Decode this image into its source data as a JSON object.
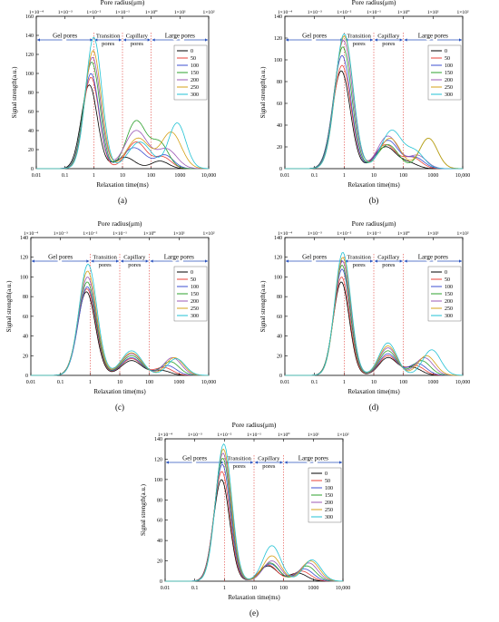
{
  "figure": {
    "top_axis_label": "Pore radius(μm)",
    "x_label": "Relaxation time(ms)",
    "y_label": "Signal strength(a.u.)",
    "top_ticks": [
      "1×10⁻⁴",
      "1×10⁻³",
      "1×10⁻²",
      "1×10⁻¹",
      "1×10⁰",
      "1×10¹",
      "1×10²"
    ],
    "x_ticks": [
      "0.01",
      "0.1",
      "1",
      "10",
      "100",
      "1000",
      "10,000"
    ],
    "regions": [
      {
        "label": [
          "Gel pores"
        ],
        "from": 0.01,
        "to": 1
      },
      {
        "label": [
          "Transition",
          "pores"
        ],
        "from": 1,
        "to": 10
      },
      {
        "label": [
          "Capillary",
          "pores"
        ],
        "from": 10,
        "to": 100
      },
      {
        "label": [
          "Large pores"
        ],
        "from": 100,
        "to": 10000
      }
    ],
    "boundary_lines": [
      1,
      10,
      100
    ],
    "legend_labels": [
      "0",
      "50",
      "100",
      "150",
      "200",
      "250",
      "300"
    ],
    "series_colors": [
      "#000000",
      "#e8423a",
      "#3e4fd0",
      "#2ca02c",
      "#9b59b6",
      "#d4a017",
      "#22c2d4"
    ]
  },
  "chart_data": [
    {
      "panel_label": "(a)",
      "type": "line",
      "x_scale": "log",
      "xlim": [
        0.01,
        10000
      ],
      "ylim": [
        0,
        160
      ],
      "y_ticks": [
        0,
        20,
        40,
        60,
        80,
        100,
        120,
        140,
        160
      ],
      "series": [
        {
          "name": "0",
          "peaks": [
            [
              0.7,
              88,
              0.28
            ],
            [
              12,
              12,
              0.35
            ],
            [
              200,
              8,
              0.3
            ]
          ]
        },
        {
          "name": "50",
          "peaks": [
            [
              0.8,
              96,
              0.28
            ],
            [
              30,
              28,
              0.35
            ],
            [
              250,
              12,
              0.3
            ]
          ]
        },
        {
          "name": "100",
          "peaks": [
            [
              0.8,
              100,
              0.28
            ],
            [
              25,
              22,
              0.4
            ],
            [
              300,
              14,
              0.3
            ]
          ]
        },
        {
          "name": "150",
          "peaks": [
            [
              0.85,
              112,
              0.28
            ],
            [
              30,
              50,
              0.35
            ],
            [
              200,
              26,
              0.3
            ]
          ]
        },
        {
          "name": "200",
          "peaks": [
            [
              0.9,
              117,
              0.28
            ],
            [
              30,
              40,
              0.4
            ],
            [
              350,
              20,
              0.35
            ]
          ]
        },
        {
          "name": "250",
          "peaks": [
            [
              0.95,
              124,
              0.28
            ],
            [
              35,
              32,
              0.4
            ],
            [
              500,
              38,
              0.35
            ]
          ]
        },
        {
          "name": "300",
          "peaks": [
            [
              1.0,
              138,
              0.28
            ],
            [
              40,
              28,
              0.4
            ],
            [
              800,
              48,
              0.3
            ]
          ]
        }
      ]
    },
    {
      "panel_label": "(b)",
      "type": "line",
      "x_scale": "log",
      "xlim": [
        0.01,
        10000
      ],
      "ylim": [
        0,
        140
      ],
      "y_ticks": [
        0,
        20,
        40,
        60,
        80,
        100,
        120,
        140
      ],
      "series": [
        {
          "name": "0",
          "peaks": [
            [
              0.8,
              90,
              0.3
            ],
            [
              25,
              20,
              0.35
            ],
            [
              150,
              5,
              0.3
            ]
          ]
        },
        {
          "name": "50",
          "peaks": [
            [
              0.85,
              95,
              0.3
            ],
            [
              25,
              22,
              0.35
            ],
            [
              200,
              10,
              0.3
            ]
          ]
        },
        {
          "name": "100",
          "peaks": [
            [
              0.85,
              104,
              0.3
            ],
            [
              30,
              26,
              0.35
            ],
            [
              250,
              10,
              0.3
            ]
          ]
        },
        {
          "name": "150",
          "peaks": [
            [
              0.9,
              112,
              0.3
            ],
            [
              30,
              22,
              0.35
            ],
            [
              700,
              28,
              0.3
            ]
          ]
        },
        {
          "name": "200",
          "peaks": [
            [
              0.95,
              118,
              0.3
            ],
            [
              30,
              30,
              0.35
            ],
            [
              300,
              12,
              0.3
            ]
          ]
        },
        {
          "name": "250",
          "peaks": [
            [
              1.0,
              122,
              0.3
            ],
            [
              35,
              28,
              0.35
            ],
            [
              700,
              28,
              0.3
            ]
          ]
        },
        {
          "name": "300",
          "peaks": [
            [
              1.0,
              124,
              0.3
            ],
            [
              40,
              35,
              0.35
            ],
            [
              250,
              15,
              0.3
            ]
          ]
        }
      ]
    },
    {
      "panel_label": "(c)",
      "type": "line",
      "x_scale": "log",
      "xlim": [
        0.01,
        10000
      ],
      "ylim": [
        0,
        140
      ],
      "y_ticks": [
        0,
        20,
        40,
        60,
        80,
        100,
        120,
        140
      ],
      "series": [
        {
          "name": "0",
          "peaks": [
            [
              0.75,
              85,
              0.3
            ],
            [
              25,
              15,
              0.35
            ],
            [
              250,
              5,
              0.3
            ]
          ]
        },
        {
          "name": "50",
          "peaks": [
            [
              0.78,
              88,
              0.3
            ],
            [
              25,
              17,
              0.35
            ],
            [
              300,
              8,
              0.3
            ]
          ]
        },
        {
          "name": "100",
          "peaks": [
            [
              0.8,
              90,
              0.3
            ],
            [
              25,
              18,
              0.35
            ],
            [
              400,
              10,
              0.3
            ]
          ]
        },
        {
          "name": "150",
          "peaks": [
            [
              0.8,
              95,
              0.3
            ],
            [
              25,
              20,
              0.35
            ],
            [
              500,
              14,
              0.3
            ]
          ]
        },
        {
          "name": "200",
          "peaks": [
            [
              0.82,
              100,
              0.3
            ],
            [
              25,
              22,
              0.35
            ],
            [
              600,
              18,
              0.3
            ]
          ]
        },
        {
          "name": "250",
          "peaks": [
            [
              0.82,
              106,
              0.3
            ],
            [
              25,
              23,
              0.35
            ],
            [
              700,
              18,
              0.3
            ]
          ]
        },
        {
          "name": "300",
          "peaks": [
            [
              0.85,
              113,
              0.3
            ],
            [
              25,
              25,
              0.35
            ],
            [
              800,
              17,
              0.3
            ]
          ]
        }
      ]
    },
    {
      "panel_label": "(d)",
      "type": "line",
      "x_scale": "log",
      "xlim": [
        0.01,
        10000
      ],
      "ylim": [
        0,
        140
      ],
      "y_ticks": [
        0,
        20,
        40,
        60,
        80,
        100,
        120,
        140
      ],
      "series": [
        {
          "name": "0",
          "peaks": [
            [
              0.8,
              95,
              0.27
            ],
            [
              30,
              18,
              0.3
            ],
            [
              200,
              8,
              0.3
            ]
          ]
        },
        {
          "name": "50",
          "peaks": [
            [
              0.82,
              100,
              0.27
            ],
            [
              30,
              20,
              0.3
            ],
            [
              250,
              10,
              0.3
            ]
          ]
        },
        {
          "name": "100",
          "peaks": [
            [
              0.85,
              108,
              0.27
            ],
            [
              30,
              22,
              0.3
            ],
            [
              300,
              12,
              0.3
            ]
          ]
        },
        {
          "name": "150",
          "peaks": [
            [
              0.85,
              112,
              0.27
            ],
            [
              30,
              25,
              0.3
            ],
            [
              400,
              15,
              0.3
            ]
          ]
        },
        {
          "name": "200",
          "peaks": [
            [
              0.88,
              116,
              0.27
            ],
            [
              30,
              28,
              0.3
            ],
            [
              500,
              18,
              0.3
            ]
          ]
        },
        {
          "name": "250",
          "peaks": [
            [
              0.9,
              120,
              0.27
            ],
            [
              30,
              30,
              0.3
            ],
            [
              600,
              20,
              0.3
            ]
          ]
        },
        {
          "name": "300",
          "peaks": [
            [
              0.9,
              125,
              0.27
            ],
            [
              30,
              33,
              0.3
            ],
            [
              900,
              26,
              0.3
            ]
          ]
        }
      ]
    },
    {
      "panel_label": "(e)",
      "type": "line",
      "x_scale": "log",
      "xlim": [
        0.01,
        10000
      ],
      "ylim": [
        0,
        140
      ],
      "y_ticks": [
        0,
        20,
        40,
        60,
        80,
        100,
        120,
        140
      ],
      "series": [
        {
          "name": "0",
          "peaks": [
            [
              0.8,
              100,
              0.27
            ],
            [
              30,
              15,
              0.3
            ],
            [
              300,
              8,
              0.3
            ]
          ]
        },
        {
          "name": "50",
          "peaks": [
            [
              0.82,
              108,
              0.27
            ],
            [
              30,
              16,
              0.3
            ],
            [
              400,
              10,
              0.3
            ]
          ]
        },
        {
          "name": "100",
          "peaks": [
            [
              0.85,
              115,
              0.27
            ],
            [
              35,
              17,
              0.3
            ],
            [
              500,
              12,
              0.3
            ]
          ]
        },
        {
          "name": "150",
          "peaks": [
            [
              0.88,
              121,
              0.27
            ],
            [
              35,
              18,
              0.3
            ],
            [
              600,
              15,
              0.3
            ]
          ]
        },
        {
          "name": "200",
          "peaks": [
            [
              0.9,
              126,
              0.27
            ],
            [
              40,
              20,
              0.3
            ],
            [
              700,
              18,
              0.3
            ]
          ]
        },
        {
          "name": "250",
          "peaks": [
            [
              0.92,
              130,
              0.27
            ],
            [
              40,
              25,
              0.3
            ],
            [
              800,
              20,
              0.3
            ]
          ]
        },
        {
          "name": "300",
          "peaks": [
            [
              0.95,
              135,
              0.27
            ],
            [
              40,
              35,
              0.3
            ],
            [
              900,
              21,
              0.3
            ]
          ]
        }
      ]
    }
  ]
}
